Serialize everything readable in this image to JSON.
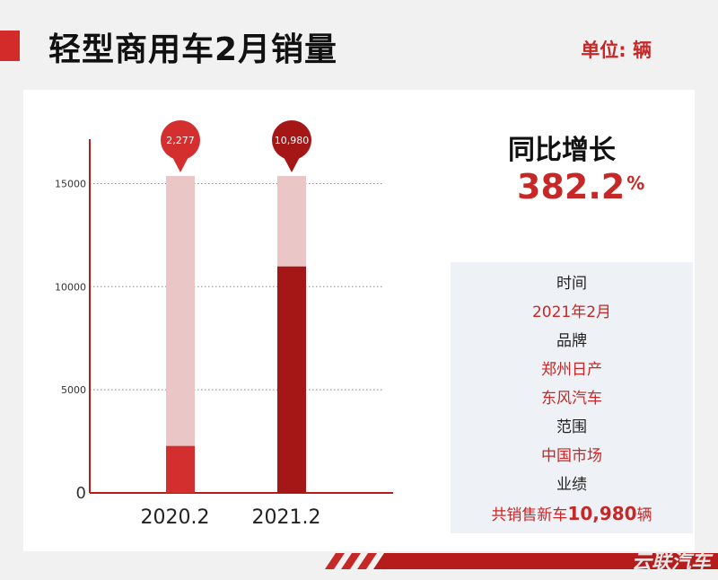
{
  "header": {
    "title": "轻型商用车2月销量",
    "unit": "单位: 辆"
  },
  "chart_data": {
    "type": "bar",
    "categories": [
      "2020.2",
      "2021.2"
    ],
    "values": [
      2277,
      10980
    ],
    "data_labels": [
      "2,277",
      "10,980"
    ],
    "ylim": [
      0,
      16500
    ],
    "yticks": [
      0,
      5000,
      10000,
      15000
    ],
    "ytick_labels": [
      "0",
      "5000",
      "10000",
      "15000"
    ],
    "grid": true,
    "colors": {
      "bar_2020": "#d32f2f",
      "bar_2021": "#a51616",
      "bar_bg": "#ebc6c7",
      "axis": "#b71c1c"
    }
  },
  "yoy": {
    "label": "同比增长",
    "value": "382.2",
    "suffix": "%"
  },
  "info": {
    "time_label": "时间",
    "time_value": "2021年2月",
    "brand_label": "品牌",
    "brand_line1": "郑州日产",
    "brand_line2": "东风汽车",
    "scope_label": "范围",
    "scope_value": "中国市场",
    "perf_label": "业绩",
    "perf_prefix": "共销售新车",
    "perf_number": "10,980",
    "perf_suffix": "辆"
  },
  "watermark": "云联汽车"
}
